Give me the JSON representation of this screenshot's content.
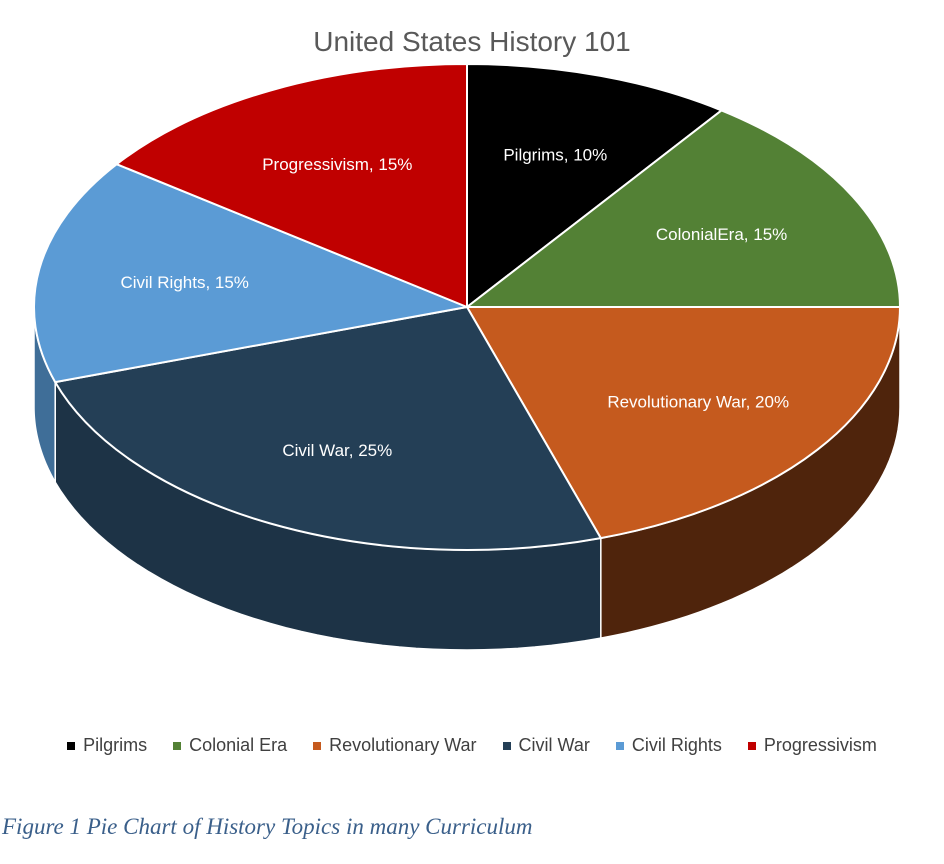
{
  "chart_data": {
    "type": "pie",
    "title": "United States History 101",
    "slices": [
      {
        "name": "Pilgrims",
        "value": 10,
        "label": "Pilgrims, 10%",
        "color": "#000000",
        "side": "#000000"
      },
      {
        "name": "Colonial Era",
        "value": 15,
        "label": "ColonialEra, 15%",
        "color": "#538135",
        "side": "#3a5a25"
      },
      {
        "name": "Revolutionary War",
        "value": 20,
        "label": "Revolutionary War, 20%",
        "color": "#c55a1e",
        "side": "#4f240c"
      },
      {
        "name": "Civil War",
        "value": 25,
        "label": "Civil War, 25%",
        "color": "#243f56",
        "side": "#1d3346"
      },
      {
        "name": "Civil Rights",
        "value": 15,
        "label": "Civil Rights, 15%",
        "color": "#5b9bd5",
        "side": "#3f6e98"
      },
      {
        "name": "Progressivism",
        "value": 15,
        "label": "Progressivism, 15%",
        "color": "#c00000",
        "side": "#7a0000"
      }
    ],
    "legend": [
      "Pilgrims",
      "Colonial Era",
      "Revolutionary War",
      "Civil War",
      "Civil Rights",
      "Progressivism"
    ],
    "legend_position": "bottom"
  },
  "caption": "Figure 1 Pie Chart of History Topics in many Curriculum"
}
